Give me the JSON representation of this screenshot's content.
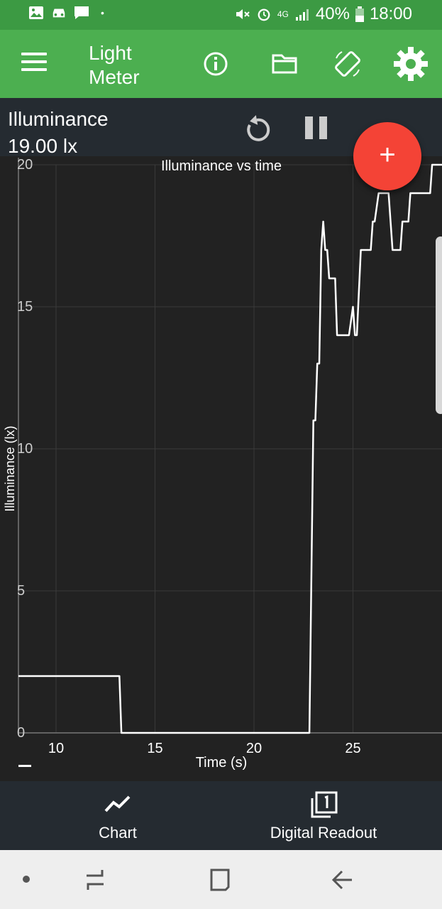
{
  "status_bar": {
    "battery": "40%",
    "time": "18:00",
    "network": "4G",
    "icons": [
      "image-icon",
      "car-icon",
      "message-icon",
      "dot-icon",
      "mute-icon",
      "alarm-icon",
      "signal-icon",
      "battery-icon"
    ]
  },
  "app_bar": {
    "title": "Light Meter",
    "actions": [
      "info-icon",
      "folder-icon",
      "screen-rotate-icon",
      "settings-gear-icon"
    ],
    "color": "#4caf50"
  },
  "readout": {
    "label": "Illuminance",
    "value": "19.00 lx"
  },
  "fab": {
    "label": "+",
    "color": "#f44336"
  },
  "chart_data": {
    "type": "line",
    "title": "Illuminance vs time",
    "xlabel": "Time (s)",
    "ylabel": "Illuminance (lx)",
    "xlim": [
      8.1,
      29.5
    ],
    "ylim": [
      0,
      20
    ],
    "x_ticks": [
      10,
      15,
      20,
      25
    ],
    "y_ticks": [
      0,
      5,
      10,
      15,
      20
    ],
    "grid": true,
    "series": [
      {
        "color": "#ffffff",
        "x": [
          8.1,
          13.2,
          13.3,
          22.8,
          23.0,
          23.1,
          23.2,
          23.3,
          23.4,
          23.5,
          23.6,
          23.7,
          23.8,
          23.9,
          24.1,
          24.2,
          24.3,
          24.5,
          24.8,
          25.0,
          25.1,
          25.2,
          25.4,
          25.5,
          25.9,
          26.0,
          26.1,
          26.3,
          26.8,
          27.0,
          27.4,
          27.5,
          27.8,
          27.9,
          28.3,
          28.4,
          28.9,
          29.0,
          29.5
        ],
        "y": [
          2,
          2,
          0,
          0,
          11,
          11,
          13,
          13,
          17,
          18,
          17,
          17,
          16,
          16,
          16,
          14,
          14,
          14,
          14,
          15,
          14,
          14,
          17,
          17,
          17,
          18,
          18,
          19,
          19,
          17,
          17,
          18,
          18,
          19,
          19,
          19,
          19,
          20,
          20
        ]
      }
    ]
  },
  "bottom_nav": {
    "chart_label": "Chart",
    "readout_label": "Digital Readout"
  }
}
